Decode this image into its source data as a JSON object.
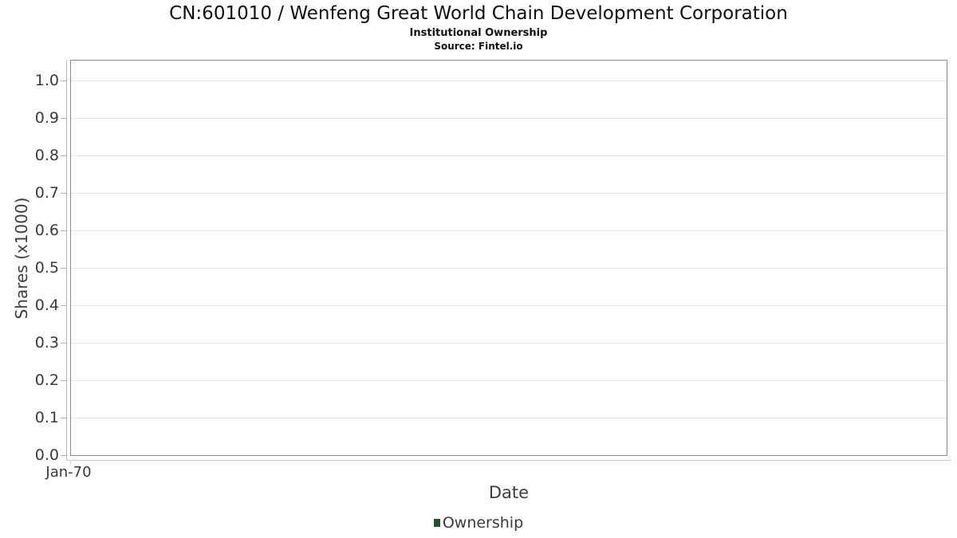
{
  "chart_data": {
    "type": "line",
    "title": "CN:601010 / Wenfeng Great World Chain Development Corporation",
    "subtitle": "Institutional Ownership",
    "source": "Source: Fintel.io",
    "xlabel": "Date",
    "ylabel": "Shares (x1000)",
    "ylim": [
      0.0,
      1.0
    ],
    "ytick_step": 0.1,
    "yticks": [
      "0.0",
      "0.1",
      "0.2",
      "0.3",
      "0.4",
      "0.5",
      "0.6",
      "0.7",
      "0.8",
      "0.9",
      "1.0"
    ],
    "xticks": [
      "Jan-70"
    ],
    "grid": "horizontal-only",
    "legend_position": "bottom-center",
    "series": [
      {
        "name": "Ownership",
        "color": "#1e5430",
        "x": [],
        "values": []
      }
    ]
  },
  "colors": {
    "legend_swatch": "#1e5430",
    "gridline": "#e5e5e5",
    "plot_border": "#8a8a8a"
  }
}
